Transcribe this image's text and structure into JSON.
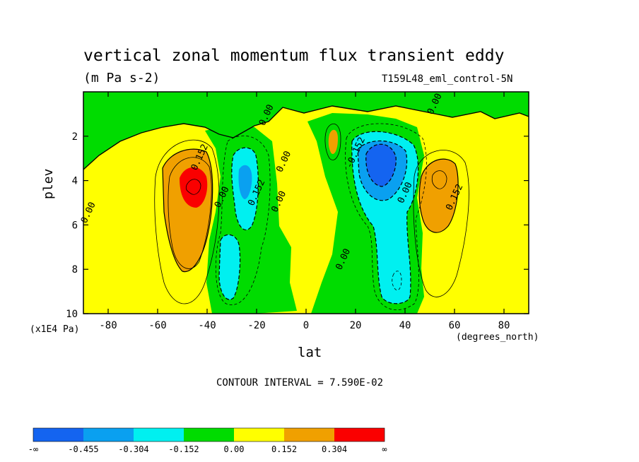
{
  "chart_data": {
    "type": "contour",
    "title": "vertical zonal momentum flux transient eddy",
    "units": "(m Pa s-2)",
    "run_label": "T159L48_eml_control-5N",
    "xlabel": "lat",
    "x_units": "(degrees_north)",
    "ylabel": "plev",
    "y_units": "(x1E4 Pa)",
    "xlim": [
      -90,
      90
    ],
    "ylim": [
      10,
      0
    ],
    "x_ticks": [
      -80,
      -60,
      -40,
      -20,
      0,
      20,
      40,
      60,
      80
    ],
    "y_ticks": [
      2,
      4,
      6,
      8,
      10
    ],
    "contour_interval_text": "CONTOUR INTERVAL = 7.590E-02",
    "contour_interval": 0.0759,
    "contour_labels": [
      {
        "text": "0.152",
        "lat": -42,
        "plev": 3.0
      },
      {
        "text": "0.00",
        "lat": -33,
        "plev": 4.8
      },
      {
        "text": "0.152",
        "lat": -19,
        "plev": 4.6
      },
      {
        "text": "0.00",
        "lat": -10,
        "plev": 5.0
      },
      {
        "text": "0.00",
        "lat": -8,
        "plev": 3.2
      },
      {
        "text": "0.00",
        "lat": -15,
        "plev": 1.1
      },
      {
        "text": "0.00",
        "lat": -87,
        "plev": 5.5
      },
      {
        "text": "-0.152",
        "lat": 21,
        "plev": 2.8
      },
      {
        "text": "0.00",
        "lat": 41,
        "plev": 4.6
      },
      {
        "text": "0.152",
        "lat": 61,
        "plev": 4.8
      },
      {
        "text": "0.00",
        "lat": 16,
        "plev": 7.6
      },
      {
        "text": "0.00",
        "lat": 53,
        "plev": 0.6
      }
    ],
    "colorbar": {
      "levels": [
        "-∞",
        "-0.455",
        "-0.304",
        "-0.152",
        "0.00",
        "0.152",
        "0.304",
        "∞"
      ],
      "colors": [
        "#1464f0",
        "#0aa0f0",
        "#00f0f0",
        "#00dc00",
        "#ffff00",
        "#f0a000",
        "#fa0000"
      ]
    },
    "features": [
      {
        "sign": "positive",
        "lat": -46,
        "plev": 4.0,
        "peak": 0.35
      },
      {
        "sign": "negative",
        "lat": -25,
        "plev": 4.2,
        "peak": -0.25
      },
      {
        "sign": "negative",
        "lat": -31,
        "plev": 8.3,
        "peak": -0.25
      },
      {
        "sign": "negative",
        "lat": 29,
        "plev": 3.2,
        "peak": -0.5
      },
      {
        "sign": "negative",
        "lat": 37,
        "plev": 8.5,
        "peak": -0.2
      },
      {
        "sign": "positive",
        "lat": 54,
        "plev": 4.5,
        "peak": 0.25
      },
      {
        "sign": "positive",
        "lat": 12,
        "plev": 2.4,
        "peak": 0.1
      }
    ]
  }
}
